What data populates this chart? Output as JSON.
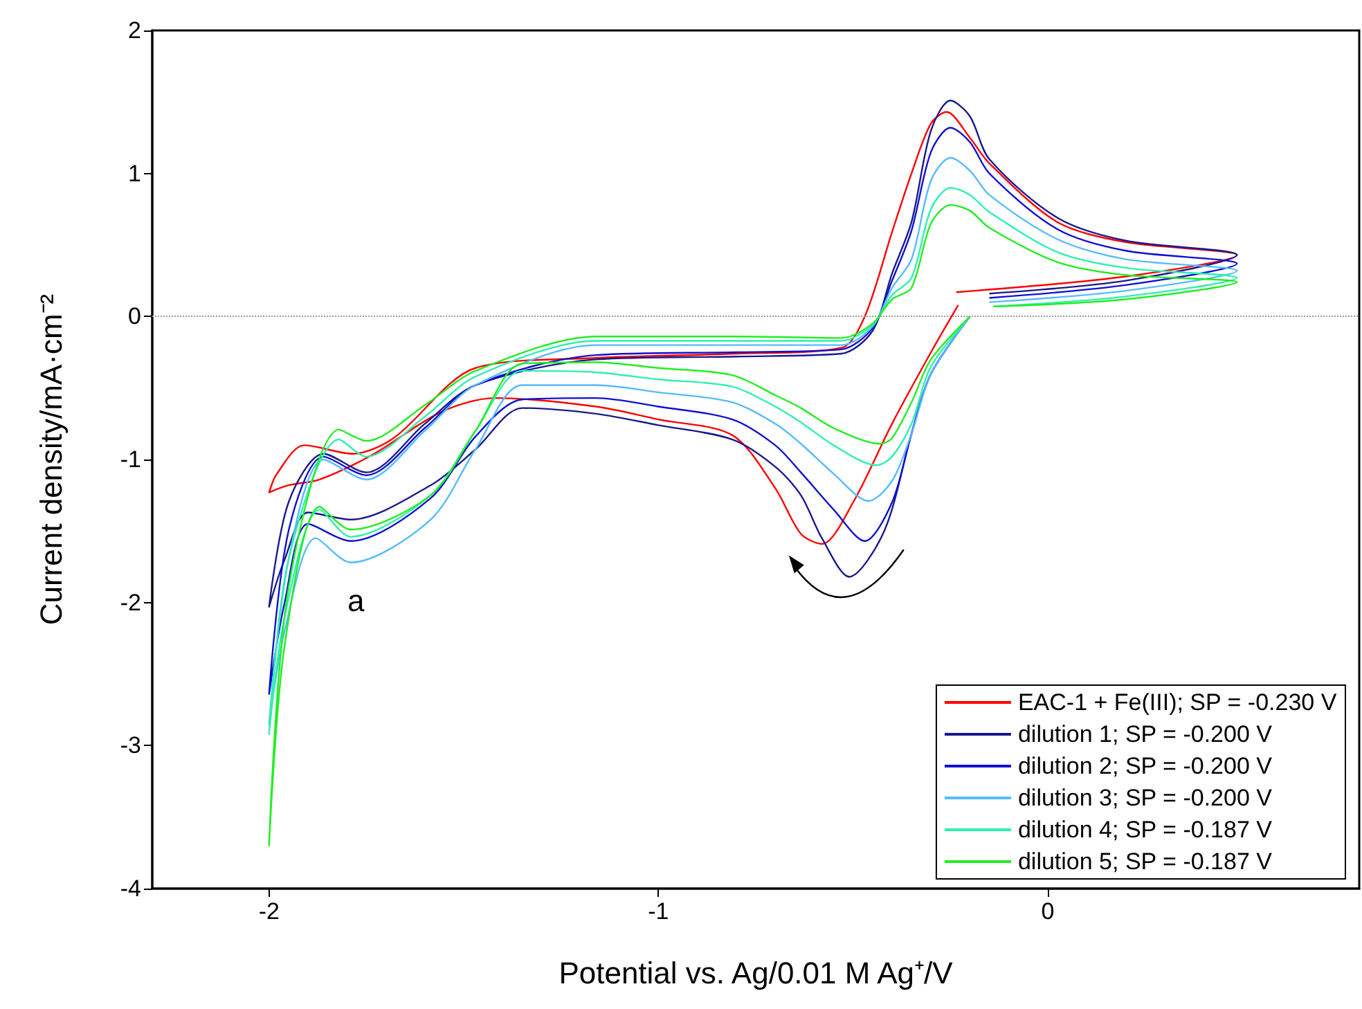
{
  "chart_data": {
    "type": "line",
    "xlabel": "Potential vs. Ag/0.01 M Ag⁺/V",
    "ylabel": "Current density/mA·cm⁻²",
    "xlim": [
      -2.3,
      0.8
    ],
    "xticks": [
      -2,
      -1,
      0
    ],
    "ylim": [
      -4,
      2
    ],
    "yticks": [
      -4,
      -3,
      -2,
      -1,
      0,
      1,
      2
    ],
    "grid": false,
    "legend": "bottom right",
    "ref_lines": [
      {
        "axis": "y",
        "value": 0,
        "color": "#999999",
        "line_style": "dotted"
      }
    ],
    "annotations": [
      "a"
    ],
    "series": [
      {
        "name": "EAC-1 + Fe(III); SP = -0.230 V",
        "color": "#ff0000",
        "x": [
          -0.23,
          -0.3,
          -0.4,
          -0.5,
          -0.58,
          -0.634,
          -0.7,
          -0.81,
          -1.0,
          -1.16,
          -1.42,
          -1.56,
          -1.73,
          -1.87,
          -1.95,
          -2.0,
          -1.98,
          -1.91,
          -1.785,
          -1.68,
          -1.47,
          -1.16,
          -0.8,
          -0.53,
          -0.47,
          -0.4,
          -0.35,
          -0.3,
          -0.26,
          -0.2,
          -0.15,
          0.025,
          0.2,
          0.486,
          0.2,
          -0.235
        ],
        "values": [
          0.08,
          -0.25,
          -0.75,
          -1.3,
          -1.59,
          -1.52,
          -1.2,
          -0.83,
          -0.72,
          -0.63,
          -0.57,
          -0.67,
          -0.96,
          -1.14,
          -1.18,
          -1.23,
          -1.1,
          -0.9,
          -0.96,
          -0.85,
          -0.36,
          -0.29,
          -0.26,
          -0.22,
          0.0,
          0.59,
          1.0,
          1.35,
          1.43,
          1.25,
          1.07,
          0.66,
          0.52,
          0.43,
          0.28,
          0.17
        ]
      },
      {
        "name": "dilution 1; SP = -0.200 V",
        "color": "#1a1a8c",
        "x": [
          -0.2,
          -0.3,
          -0.35,
          -0.42,
          -0.51,
          -0.58,
          -0.634,
          -0.7,
          -0.81,
          -1.0,
          -1.16,
          -1.35,
          -1.47,
          -1.585,
          -1.79,
          -1.9,
          -1.96,
          -2.0,
          -1.95,
          -1.86,
          -1.75,
          -1.6,
          -1.47,
          -1.16,
          -0.8,
          -0.53,
          -0.45,
          -0.4,
          -0.35,
          -0.3,
          -0.25,
          -0.2,
          -0.15,
          0.025,
          0.2,
          0.486,
          0.2,
          -0.15
        ],
        "values": [
          0.0,
          -0.4,
          -0.82,
          -1.5,
          -1.82,
          -1.55,
          -1.25,
          -1.05,
          -0.86,
          -0.76,
          -0.68,
          -0.64,
          -0.93,
          -1.18,
          -1.42,
          -1.37,
          -1.7,
          -2.03,
          -1.3,
          -0.96,
          -1.09,
          -0.75,
          -0.48,
          -0.3,
          -0.28,
          -0.26,
          -0.1,
          0.3,
          0.66,
          1.3,
          1.51,
          1.4,
          1.1,
          0.69,
          0.53,
          0.43,
          0.25,
          0.16
        ]
      },
      {
        "name": "dilution 2; SP = -0.200 V",
        "color": "#1010d0",
        "x": [
          -0.2,
          -0.3,
          -0.35,
          -0.4,
          -0.47,
          -0.55,
          -0.634,
          -0.7,
          -0.81,
          -1.0,
          -1.16,
          -1.35,
          -1.47,
          -1.585,
          -1.79,
          -1.9,
          -1.96,
          -2.0,
          -1.95,
          -1.86,
          -1.75,
          -1.6,
          -1.47,
          -1.16,
          -0.8,
          -0.53,
          -0.45,
          -0.4,
          -0.35,
          -0.3,
          -0.25,
          -0.2,
          -0.15,
          0.025,
          0.2,
          0.486,
          0.2,
          -0.15
        ],
        "values": [
          0.0,
          -0.4,
          -0.82,
          -1.3,
          -1.57,
          -1.35,
          -1.09,
          -0.9,
          -0.72,
          -0.63,
          -0.57,
          -0.58,
          -0.84,
          -1.27,
          -1.57,
          -1.45,
          -2.0,
          -2.64,
          -1.5,
          -0.98,
          -1.11,
          -0.78,
          -0.48,
          -0.27,
          -0.25,
          -0.23,
          -0.08,
          0.25,
          0.6,
          1.15,
          1.32,
          1.22,
          1.0,
          0.61,
          0.46,
          0.37,
          0.22,
          0.13
        ]
      },
      {
        "name": "dilution 3; SP = -0.200 V",
        "color": "#55bbff",
        "x": [
          -0.2,
          -0.3,
          -0.35,
          -0.4,
          -0.46,
          -0.55,
          -0.634,
          -0.7,
          -0.81,
          -1.0,
          -1.16,
          -1.35,
          -1.47,
          -1.585,
          -1.79,
          -1.88,
          -1.96,
          -2.0,
          -1.95,
          -1.86,
          -1.75,
          -1.6,
          -1.47,
          -1.16,
          -0.8,
          -0.53,
          -0.45,
          -0.4,
          -0.35,
          -0.3,
          -0.25,
          -0.2,
          -0.15,
          0.025,
          0.2,
          0.486,
          0.2,
          -0.15
        ],
        "values": [
          0.0,
          -0.4,
          -0.82,
          -1.15,
          -1.29,
          -1.1,
          -0.89,
          -0.75,
          -0.6,
          -0.53,
          -0.48,
          -0.48,
          -0.93,
          -1.42,
          -1.72,
          -1.55,
          -2.2,
          -2.85,
          -1.7,
          -1.0,
          -1.14,
          -0.8,
          -0.48,
          -0.2,
          -0.2,
          -0.2,
          -0.07,
          0.2,
          0.4,
          0.95,
          1.11,
          1.02,
          0.85,
          0.54,
          0.4,
          0.32,
          0.18,
          0.1
        ]
      },
      {
        "name": "dilution 4; SP = -0.187 V",
        "color": "#2ef0b0",
        "x": [
          -0.2,
          -0.3,
          -0.35,
          -0.4,
          -0.44,
          -0.55,
          -0.634,
          -0.7,
          -0.81,
          -1.0,
          -1.16,
          -1.35,
          -1.47,
          -1.585,
          -1.79,
          -1.87,
          -1.96,
          -2.0,
          -1.95,
          -1.82,
          -1.75,
          -1.6,
          -1.47,
          -1.16,
          -0.8,
          -0.53,
          -0.45,
          -0.4,
          -0.35,
          -0.3,
          -0.25,
          -0.2,
          -0.15,
          0.025,
          0.2,
          0.486,
          0.2,
          -0.14
        ],
        "values": [
          0.0,
          -0.35,
          -0.75,
          -0.98,
          -1.04,
          -0.9,
          -0.74,
          -0.63,
          -0.49,
          -0.44,
          -0.39,
          -0.38,
          -0.8,
          -1.25,
          -1.54,
          -1.35,
          -2.1,
          -2.92,
          -1.7,
          -0.86,
          -0.98,
          -0.7,
          -0.42,
          -0.17,
          -0.17,
          -0.17,
          -0.06,
          0.15,
          0.27,
          0.75,
          0.9,
          0.85,
          0.73,
          0.45,
          0.34,
          0.27,
          0.14,
          0.07
        ]
      },
      {
        "name": "dilution 5; SP = -0.187 V",
        "color": "#22ee22",
        "x": [
          -0.2,
          -0.3,
          -0.35,
          -0.4,
          -0.43,
          -0.55,
          -0.634,
          -0.7,
          -0.81,
          -1.0,
          -1.16,
          -1.35,
          -1.47,
          -1.585,
          -1.79,
          -1.87,
          -1.96,
          -2.0,
          -1.95,
          -1.82,
          -1.75,
          -1.6,
          -1.47,
          -1.16,
          -0.8,
          -0.53,
          -0.45,
          -0.4,
          -0.35,
          -0.3,
          -0.25,
          -0.2,
          -0.15,
          0.025,
          0.2,
          0.486,
          0.2,
          -0.14
        ],
        "values": [
          0.0,
          -0.3,
          -0.6,
          -0.85,
          -0.89,
          -0.78,
          -0.64,
          -0.55,
          -0.41,
          -0.36,
          -0.32,
          -0.33,
          -0.8,
          -1.25,
          -1.49,
          -1.33,
          -2.3,
          -3.7,
          -1.9,
          -0.79,
          -0.87,
          -0.62,
          -0.38,
          -0.14,
          -0.14,
          -0.15,
          -0.05,
          0.12,
          0.2,
          0.65,
          0.78,
          0.74,
          0.62,
          0.38,
          0.29,
          0.24,
          0.12,
          0.07
        ]
      }
    ]
  }
}
